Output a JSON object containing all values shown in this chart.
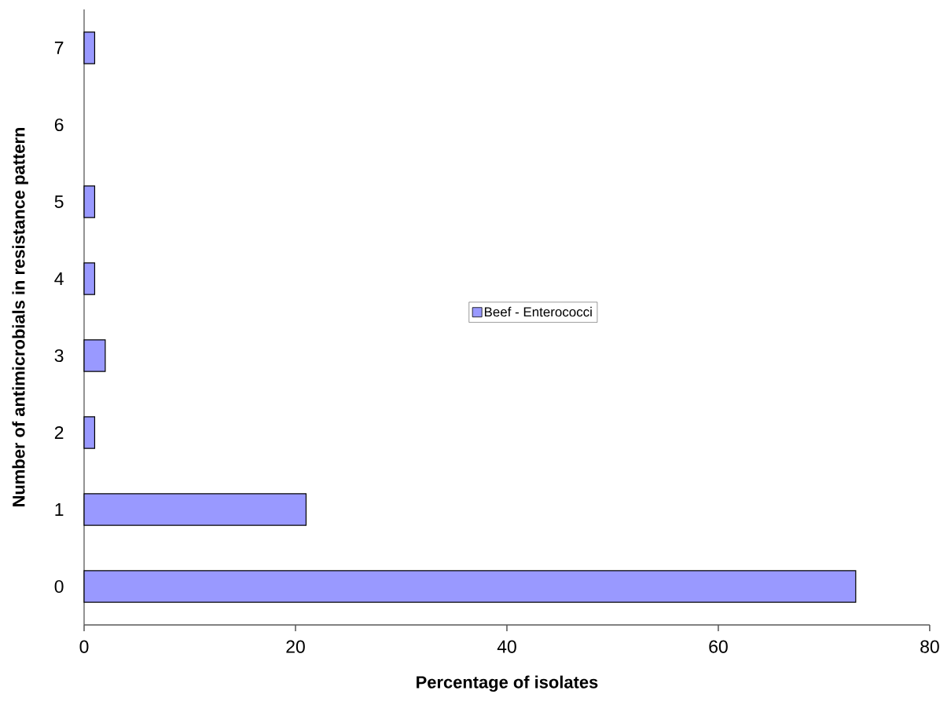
{
  "chart_data": {
    "type": "bar",
    "orientation": "horizontal",
    "xlabel": "Percentage of isolates",
    "ylabel": "Number of antimicrobials in resistance pattern",
    "categories": [
      "7",
      "6",
      "5",
      "4",
      "3",
      "2",
      "1",
      "0"
    ],
    "series": [
      {
        "name": "Beef - Enterococci",
        "color": "#9999ff",
        "values": [
          1,
          null,
          1,
          1,
          2,
          1,
          21,
          73
        ]
      }
    ],
    "xlim": [
      0,
      80
    ],
    "xticks": [
      0,
      20,
      40,
      60,
      80
    ],
    "grid": false,
    "legend": "center"
  }
}
